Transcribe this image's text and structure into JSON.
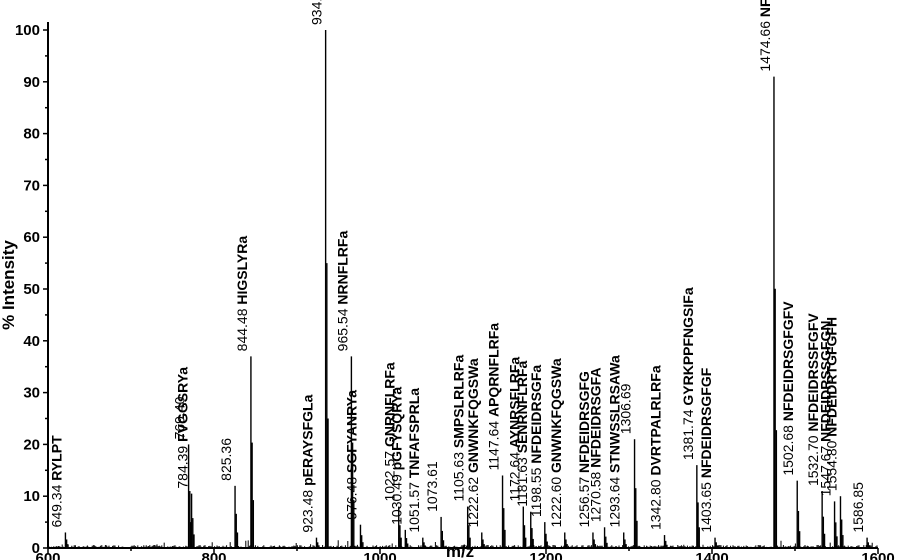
{
  "chart_data": {
    "type": "bar",
    "title": "",
    "xlabel": "m/z",
    "ylabel": "% Intensity",
    "xlim": [
      600,
      1600
    ],
    "ylim": [
      0,
      100
    ],
    "xticks": [
      600,
      800,
      1000,
      1200,
      1400,
      1600
    ],
    "yticks": [
      0,
      10,
      20,
      30,
      40,
      50,
      60,
      70,
      80,
      90,
      100
    ],
    "grid": false,
    "peaks": [
      {
        "mz": 621.0,
        "intensity": 3,
        "mass_label": "649.34",
        "seq_label": "RYLPT"
      },
      {
        "mz": 769.4,
        "intensity": 20,
        "mass_label": "769.40",
        "seq_label": ""
      },
      {
        "mz": 773.0,
        "intensity": 10.5,
        "mass_label": "784.39",
        "seq_label": "FVGGSRYa"
      },
      {
        "mz": 825.36,
        "intensity": 12,
        "mass_label": "825.36",
        "seq_label": ""
      },
      {
        "mz": 844.48,
        "intensity": 37,
        "mass_label": "844.48",
        "seq_label": "HIGSLYRa"
      },
      {
        "mz": 923.48,
        "intensity": 2,
        "mass_label": "923.48",
        "seq_label": "pERAYSFGLa"
      },
      {
        "mz": 934.5,
        "intensity": 100,
        "mass_label": "934.50",
        "seq_label": "APSGFLGMRa"
      },
      {
        "mz": 965.54,
        "intensity": 37,
        "mass_label": "965.54",
        "seq_label": "NRNFLRFa"
      },
      {
        "mz": 976.48,
        "intensity": 4.5,
        "mass_label": "976.48",
        "seq_label": "SGFYANRYa"
      },
      {
        "mz": 1022.57,
        "intensity": 8,
        "mass_label": "1022.57",
        "seq_label": "GNRNFLRFa"
      },
      {
        "mz": 1030.49,
        "intensity": 3.5,
        "mass_label": "1030.49",
        "seq_label": "pGFYSQRYa"
      },
      {
        "mz": 1051.57,
        "intensity": 2,
        "mass_label": "1051.57",
        "seq_label": "TNFAFSPRLa"
      },
      {
        "mz": 1073.61,
        "intensity": 6,
        "mass_label": "1073.61",
        "seq_label": ""
      },
      {
        "mz": 1105.63,
        "intensity": 8,
        "mass_label": "1105.63",
        "seq_label": "SMPSLRLRFa"
      },
      {
        "mz": 1122.62,
        "intensity": 3,
        "mass_label": "1222.62",
        "seq_label": "GNWNKFQGSWa"
      },
      {
        "mz": 1147.64,
        "intensity": 14,
        "mass_label": "1147.64",
        "seq_label": "APQRNFLRFa"
      },
      {
        "mz": 1172.64,
        "intensity": 8,
        "mass_label": "1172.64",
        "seq_label": "AYNRSFLRFa"
      },
      {
        "mz": 1181.63,
        "intensity": 7,
        "mass_label": "1181.63",
        "seq_label": "SENRNFLRFa"
      },
      {
        "mz": 1198.55,
        "intensity": 5,
        "mass_label": "1198.55",
        "seq_label": "NFDEIDRSGFa"
      },
      {
        "mz": 1222.6,
        "intensity": 3,
        "mass_label": "1222.60",
        "seq_label": "GNWNKFQGSWa"
      },
      {
        "mz": 1256.57,
        "intensity": 3,
        "mass_label": "1256.57",
        "seq_label": "NFDEIDRSGFG"
      },
      {
        "mz": 1270.58,
        "intensity": 4,
        "mass_label": "1270.58",
        "seq_label": "NFDEIDRSGFA"
      },
      {
        "mz": 1293.64,
        "intensity": 3,
        "mass_label": "1293.64",
        "seq_label": "STNWSSLRSAWa"
      },
      {
        "mz": 1306.69,
        "intensity": 21,
        "mass_label": "1306.69",
        "seq_label": ""
      },
      {
        "mz": 1342.8,
        "intensity": 2.5,
        "mass_label": "1342.80",
        "seq_label": "DVRTPALRLRFa"
      },
      {
        "mz": 1381.74,
        "intensity": 16,
        "mass_label": "1381.74",
        "seq_label": "GYRKPPFNGSIFa"
      },
      {
        "mz": 1403.65,
        "intensity": 2,
        "mass_label": "1403.65",
        "seq_label": "NFDEIDRSGFGF"
      },
      {
        "mz": 1474.66,
        "intensity": 91,
        "mass_label": "1474.66",
        "seq_label": "NFDEIDRSGFGFA"
      },
      {
        "mz": 1502.68,
        "intensity": 13,
        "mass_label": "1502.68",
        "seq_label": "NFDEIDRSGFGFV"
      },
      {
        "mz": 1532.7,
        "intensity": 11,
        "mass_label": "1532.70",
        "seq_label": "NFDEIDRSSFGFV"
      },
      {
        "mz": 1547.67,
        "intensity": 9,
        "mass_label": "1547.67",
        "seq_label": "NFDEIDRSSGFGN"
      },
      {
        "mz": 1554.8,
        "intensity": 10,
        "mass_label": "1554.80",
        "seq_label": "NFDEIDRTGFGFH"
      },
      {
        "mz": 1586.85,
        "intensity": 2,
        "mass_label": "1586.85",
        "seq_label": ""
      }
    ]
  }
}
